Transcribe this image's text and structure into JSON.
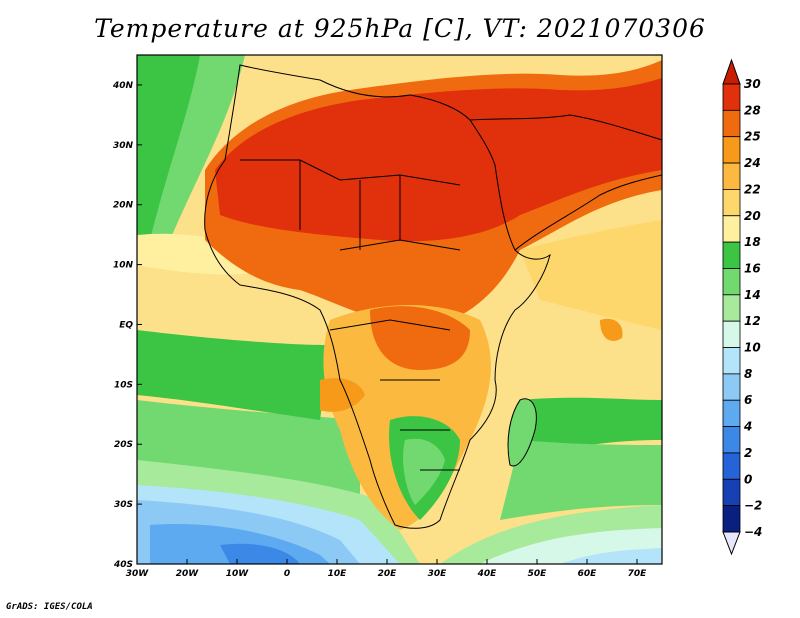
{
  "title": "Temperature at 925hPa [C], VT: 2021070306",
  "credit": "GrADS: IGES/COLA",
  "map": {
    "lat_labels": [
      {
        "label": "40N",
        "lat": 40
      },
      {
        "label": "30N",
        "lat": 30
      },
      {
        "label": "20N",
        "lat": 20
      },
      {
        "label": "10N",
        "lat": 10
      },
      {
        "label": "EQ",
        "lat": 0
      },
      {
        "label": "10S",
        "lat": -10
      },
      {
        "label": "20S",
        "lat": -20
      },
      {
        "label": "30S",
        "lat": -30
      },
      {
        "label": "40S",
        "lat": -40
      }
    ],
    "lon_labels": [
      {
        "label": "30W",
        "lon": -30
      },
      {
        "label": "20W",
        "lon": -20
      },
      {
        "label": "10W",
        "lon": -10
      },
      {
        "label": "0",
        "lon": 0
      },
      {
        "label": "10E",
        "lon": 10
      },
      {
        "label": "20E",
        "lon": 20
      },
      {
        "label": "30E",
        "lon": 30
      },
      {
        "label": "40E",
        "lon": 40
      },
      {
        "label": "50E",
        "lon": 50
      },
      {
        "label": "60E",
        "lon": 60
      },
      {
        "label": "70E",
        "lon": 70
      }
    ],
    "lon_range": [
      -30,
      75
    ],
    "lat_range": [
      -40,
      45
    ]
  },
  "colorbar": {
    "levels": [
      {
        "label": "30",
        "color": "#e0300c"
      },
      {
        "label": "28",
        "color": "#f06a10"
      },
      {
        "label": "25",
        "color": "#f79a1a"
      },
      {
        "label": "24",
        "color": "#fbb940"
      },
      {
        "label": "22",
        "color": "#fdd76b"
      },
      {
        "label": "20",
        "color": "#fff0a0"
      },
      {
        "label": "18",
        "color": "#3cc444"
      },
      {
        "label": "16",
        "color": "#72d870"
      },
      {
        "label": "14",
        "color": "#a8ea9c"
      },
      {
        "label": "12",
        "color": "#d6f8e8"
      },
      {
        "label": "10",
        "color": "#b4e4fa"
      },
      {
        "label": "8",
        "color": "#8ccaf5"
      },
      {
        "label": "6",
        "color": "#5eaaf0"
      },
      {
        "label": "4",
        "color": "#3c88e6"
      },
      {
        "label": "2",
        "color": "#2662d8"
      },
      {
        "label": "0",
        "color": "#1640b4"
      },
      {
        "label": "−2",
        "color": "#0a2080"
      },
      {
        "label": "−4",
        "color": "#e6e6ff"
      }
    ],
    "top_arrow_color": "#c81e00"
  }
}
